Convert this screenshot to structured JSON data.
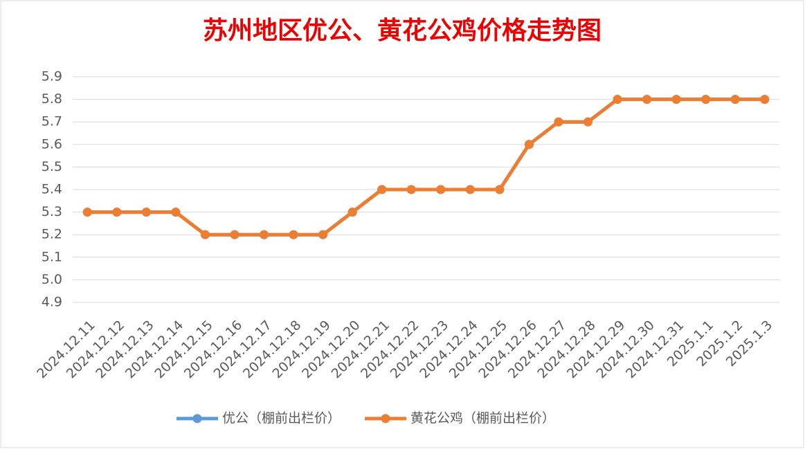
{
  "chart_data": {
    "type": "line",
    "title": "苏州地区优公、黄花公鸡价格走势图",
    "categories": [
      "2024.12.11",
      "2024.12.12",
      "2024.12.13",
      "2024.12.14",
      "2024.12.15",
      "2024.12.16",
      "2024.12.17",
      "2024.12.18",
      "2024.12.19",
      "2024.12.20",
      "2024.12.21",
      "2024.12.22",
      "2024.12.23",
      "2024.12.24",
      "2024.12.25",
      "2024.12.26",
      "2024.12.27",
      "2024.12.28",
      "2024.12.29",
      "2024.12.30",
      "2024.12.31",
      "2025.1.1",
      "2025.1.2",
      "2025.1.3"
    ],
    "series": [
      {
        "name": "优公（棚前出栏价）",
        "color": "#5b9bd5",
        "values": [
          5.3,
          5.3,
          5.3,
          5.3,
          5.2,
          5.2,
          5.2,
          5.2,
          5.2,
          5.3,
          5.4,
          5.4,
          5.4,
          5.4,
          5.4,
          5.6,
          5.7,
          5.7,
          5.8,
          5.8,
          5.8,
          5.8,
          5.8,
          5.8
        ]
      },
      {
        "name": "黄花公鸡（棚前出栏价）",
        "color": "#ed7d31",
        "values": [
          5.3,
          5.3,
          5.3,
          5.3,
          5.2,
          5.2,
          5.2,
          5.2,
          5.2,
          5.3,
          5.4,
          5.4,
          5.4,
          5.4,
          5.4,
          5.6,
          5.7,
          5.7,
          5.8,
          5.8,
          5.8,
          5.8,
          5.8,
          5.8
        ]
      }
    ],
    "ylim": [
      4.9,
      5.9
    ],
    "yticks": [
      4.9,
      {
        "value": 5,
        "label": "5.0"
      },
      5.1,
      5.2,
      5.3,
      5.4,
      5.5,
      5.6,
      5.7,
      5.8,
      5.9
    ],
    "grid": true,
    "legend": "bottom"
  }
}
